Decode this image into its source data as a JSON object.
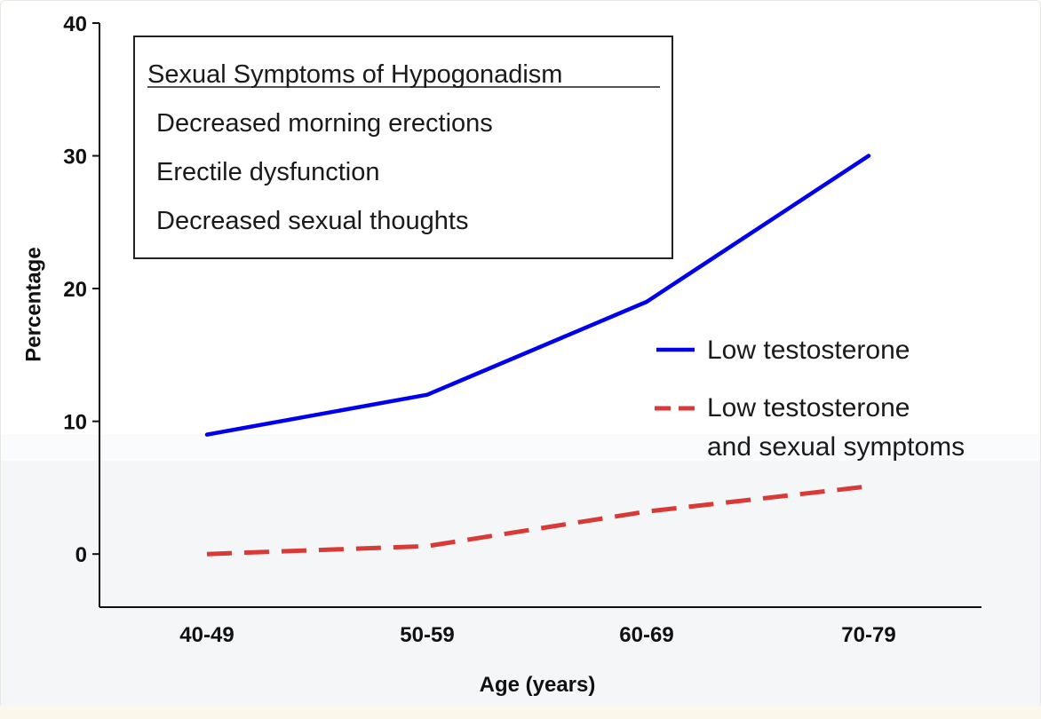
{
  "colors": {
    "low_testosterone": "#0000ee",
    "low_testosterone_and_symptoms": "#d93a36",
    "axis": "#111111"
  },
  "chart_data": {
    "type": "line",
    "xlabel": "Age (years)",
    "ylabel": "Percentage",
    "ylim": [
      -4,
      40
    ],
    "yticks": [
      "0",
      "10",
      "20",
      "30",
      "40"
    ],
    "categories": [
      "40-49",
      "50-59",
      "60-69",
      "70-79"
    ],
    "series": [
      {
        "name": "Low testosterone",
        "style": "solid",
        "values": [
          9,
          12,
          19,
          30
        ]
      },
      {
        "name": "Low testosterone and sexual symptoms",
        "style": "dashed",
        "values": [
          0,
          0.6,
          3.2,
          5.1
        ]
      }
    ],
    "legend": {
      "placement": "center-right",
      "items": [
        {
          "lines": [
            "Low testosterone"
          ]
        },
        {
          "lines": [
            "Low testosterone",
            "and sexual symptoms"
          ]
        }
      ]
    },
    "annotation": {
      "title": "Sexual Symptoms of Hypogonadism",
      "items": [
        "Decreased morning erections",
        "Erectile dysfunction",
        "Decreased sexual thoughts"
      ]
    }
  }
}
